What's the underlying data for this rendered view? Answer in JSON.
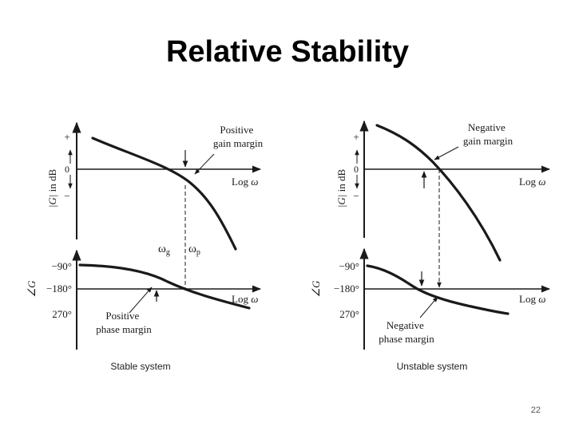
{
  "slide": {
    "title": "Relative Stability",
    "page_number": "22"
  },
  "stable": {
    "gain_axis_plus": "+",
    "gain_axis_zero": "0",
    "gain_axis_minus": "−",
    "gain_ylabel_left": "|G|",
    "gain_ylabel_right": "in dB",
    "gain_xlabel_text": "Log ",
    "gain_xlabel_omega": "ω",
    "gain_margin_line1": "Positive",
    "gain_margin_line2": "gain margin",
    "omega_g": "ω",
    "omega_g_sub": "g",
    "omega_p": "ω",
    "omega_p_sub": "p",
    "phase_tick_90": "−90°",
    "phase_tick_180": "−180°",
    "phase_tick_270": "270°",
    "phase_ylabel": "∠G",
    "phase_xlabel_text": "Log ",
    "phase_xlabel_omega": "ω",
    "phase_margin_line1": "Positive",
    "phase_margin_line2": "phase margin",
    "caption": "Stable system"
  },
  "unstable": {
    "gain_axis_plus": "+",
    "gain_axis_zero": "0",
    "gain_axis_minus": "−",
    "gain_ylabel_left": "|G|",
    "gain_ylabel_right": "in dB",
    "gain_xlabel_text": "Log ",
    "gain_xlabel_omega": "ω",
    "gain_margin_line1": "Negative",
    "gain_margin_line2": "gain margin",
    "phase_tick_90": "−90°",
    "phase_tick_180": "−180°",
    "phase_tick_270": "270°",
    "phase_ylabel": "∠G",
    "phase_xlabel_text": "Log ",
    "phase_xlabel_omega": "ω",
    "phase_margin_line1": "Negative",
    "phase_margin_line2": "phase margin",
    "caption": "Unstable system"
  }
}
